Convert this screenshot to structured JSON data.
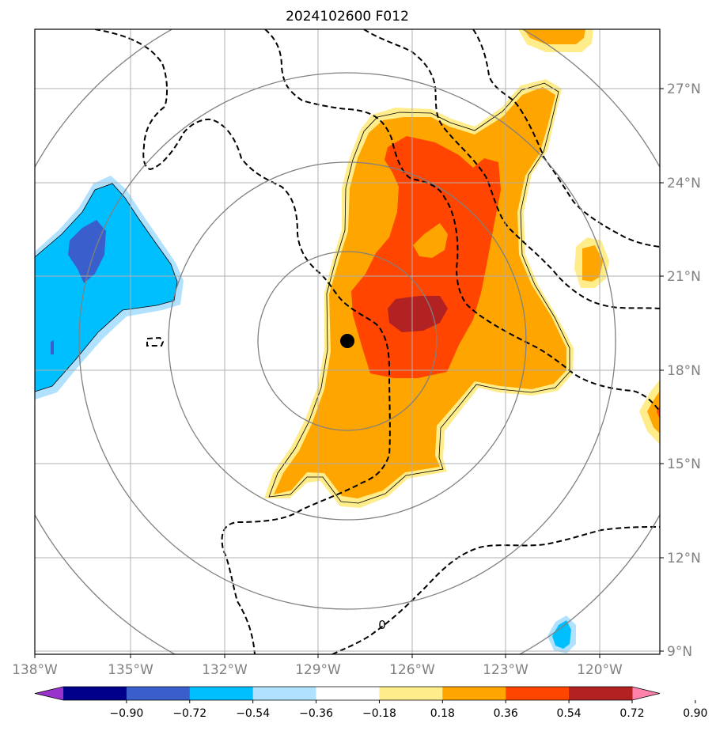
{
  "title": "2024102600 F012",
  "lon_labels": [
    "138°W",
    "135°W",
    "132°W",
    "129°W",
    "126°W",
    "123°W",
    "120°W"
  ],
  "lat_labels": [
    "27°N",
    "24°N",
    "21°N",
    "18°N",
    "15°N",
    "12°N",
    "9°N"
  ],
  "zero_contour_label": "0",
  "colorbar": {
    "ticks": [
      "−0.90",
      "−0.72",
      "−0.54",
      "−0.36",
      "−0.18",
      "0.18",
      "0.36",
      "0.54",
      "0.72",
      "0.90"
    ],
    "colors": [
      "#9932cc",
      "#00008b",
      "#3a5fcd",
      "#00bfff",
      "#b0e2ff",
      "#ffffff",
      "#ffec8b",
      "#ffa500",
      "#ff4500",
      "#b22222",
      "#ff82ab"
    ]
  },
  "fill_colors": {
    "neg_light": "#b0e2ff",
    "neg_mid": "#00bfff",
    "neg_dark": "#3a5fcd",
    "pos_light": "#ffec8b",
    "pos_mid": "#ffa500",
    "pos_high": "#ff4500",
    "pos_max": "#b22222"
  },
  "storm_center": {
    "lon": -128.1,
    "lat": 18.9
  }
}
